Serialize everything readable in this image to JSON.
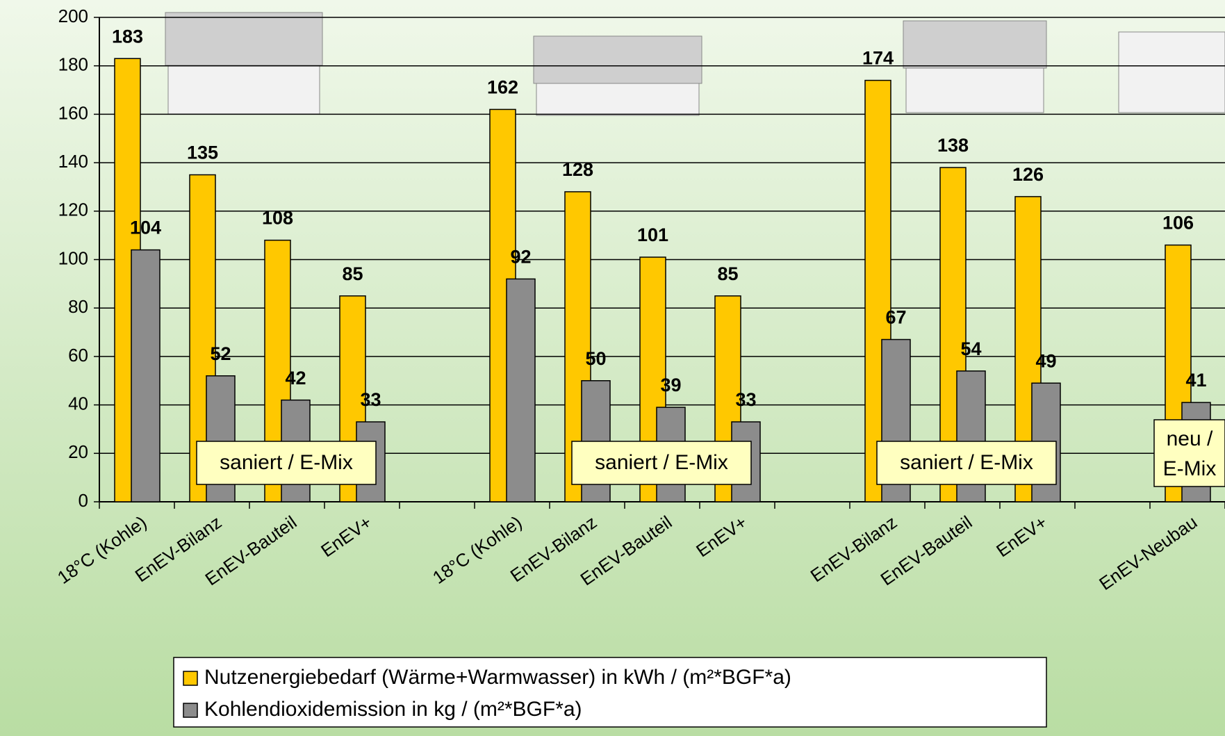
{
  "chart_data": {
    "type": "bar",
    "categories": [
      "18°C (Kohle)",
      "EnEV-Bilanz",
      "EnEV-Bauteil",
      "EnEV+",
      null,
      "18°C (Kohle)",
      "EnEV-Bilanz",
      "EnEV-Bauteil",
      "EnEV+",
      null,
      "EnEV-Bilanz",
      "EnEV-Bauteil",
      "EnEV+",
      null,
      "EnEV-Neubau"
    ],
    "series": [
      {
        "name": "Nutzenergiebedarf (Wärme+Warmwasser) in kWh / (m²*BGF*a)",
        "color": "#ffc800",
        "values": [
          183,
          135,
          108,
          85,
          null,
          162,
          128,
          101,
          85,
          null,
          174,
          138,
          126,
          null,
          106
        ]
      },
      {
        "name": "Kohlendioxidemission in kg / (m²*BGF*a)",
        "color": "#8c8c8c",
        "values": [
          104,
          52,
          42,
          33,
          null,
          92,
          50,
          39,
          33,
          null,
          67,
          54,
          49,
          null,
          41
        ]
      }
    ],
    "ylim": [
      0,
      200
    ],
    "yticks": [
      0,
      20,
      40,
      60,
      80,
      100,
      120,
      140,
      160,
      180,
      200
    ],
    "grid": true,
    "legend": "bottom",
    "annotations": [
      "saniert / E-Mix",
      "saniert / E-Mix",
      "saniert / E-Mix",
      "neu /",
      "E-Mix"
    ]
  }
}
